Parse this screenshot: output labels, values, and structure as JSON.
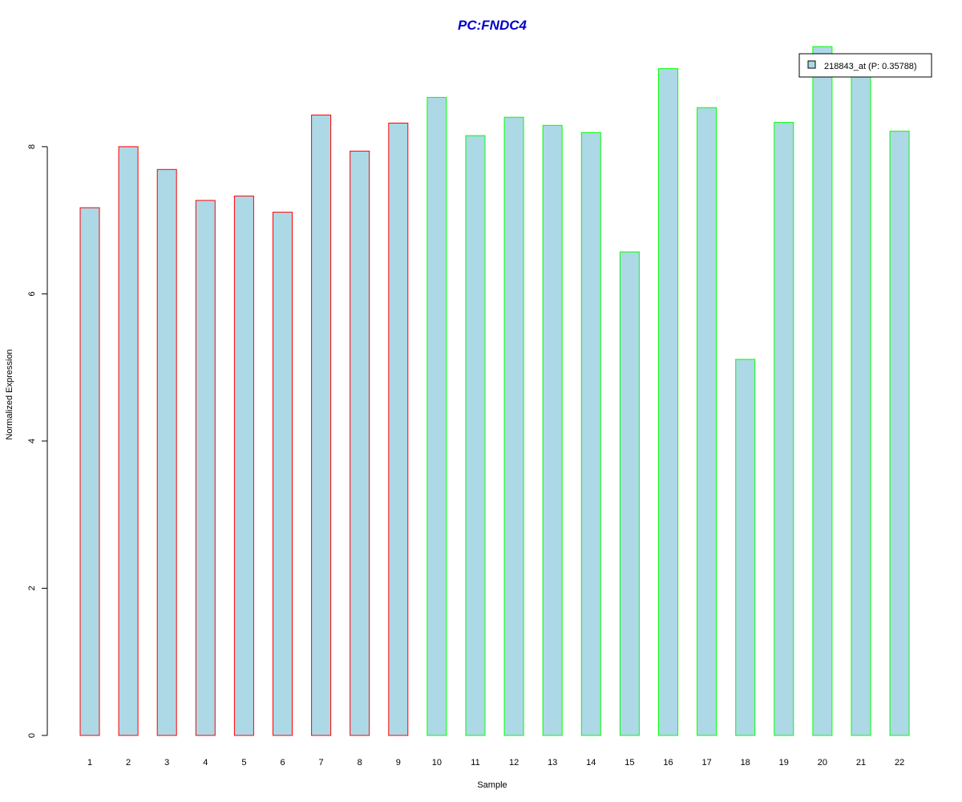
{
  "chart_data": {
    "type": "bar",
    "title": "PC:FNDC4",
    "title_color": "#0000cc",
    "xlabel": "Sample",
    "ylabel": "Normalized Expression",
    "ylim": [
      0,
      9.35
    ],
    "y_ticks": [
      0,
      2,
      4,
      6,
      8
    ],
    "grid": false,
    "bar_fill": "#add8e6",
    "categories": [
      "1",
      "2",
      "3",
      "4",
      "5",
      "6",
      "7",
      "8",
      "9",
      "10",
      "11",
      "12",
      "13",
      "14",
      "15",
      "16",
      "17",
      "18",
      "19",
      "20",
      "21",
      "22"
    ],
    "values": [
      7.17,
      8.0,
      7.69,
      7.27,
      7.33,
      7.11,
      8.43,
      7.94,
      8.32,
      8.67,
      8.15,
      8.4,
      8.29,
      8.19,
      6.57,
      9.06,
      8.53,
      5.11,
      8.33,
      9.36,
      8.96,
      8.21
    ],
    "groups": [
      "red",
      "red",
      "red",
      "red",
      "red",
      "red",
      "red",
      "red",
      "red",
      "green",
      "green",
      "green",
      "green",
      "green",
      "green",
      "green",
      "green",
      "green",
      "green",
      "green",
      "green",
      "green"
    ],
    "group_colors": {
      "red": "#ff0000",
      "green": "#00ff00"
    },
    "legend": {
      "label": "218843_at (P: 0.35788)",
      "position": "top-right",
      "swatch_color": "#add8e6"
    }
  }
}
